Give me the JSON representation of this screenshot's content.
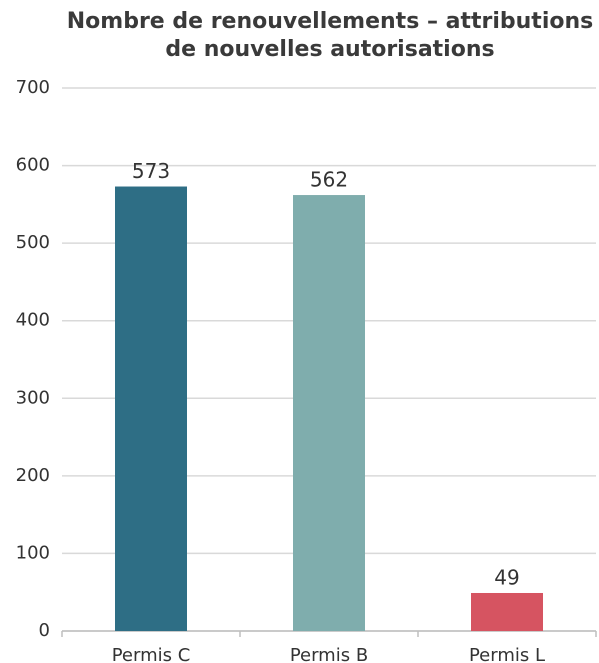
{
  "chart_data": {
    "type": "bar",
    "title": "Nombre de renouvellements – attributions de nouvelles autorisations",
    "categories": [
      "Permis C",
      "Permis B",
      "Permis L"
    ],
    "values": [
      573,
      562,
      49
    ],
    "colors": [
      "#2e6e85",
      "#7fadad",
      "#d65461"
    ],
    "ylim": [
      0,
      700
    ],
    "yticks": [
      0,
      100,
      200,
      300,
      400,
      500,
      600,
      700
    ],
    "grid": true
  }
}
